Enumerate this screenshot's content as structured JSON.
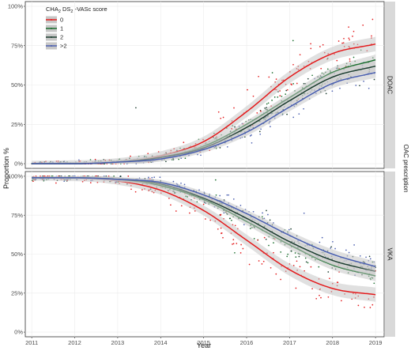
{
  "chart_data": {
    "type": "scatter",
    "facets": [
      "DOAC",
      "VKA"
    ],
    "xlabel": "Year",
    "ylabel": "Proportion %",
    "right_label": "OAC prescription",
    "x_ticks": [
      "2011",
      "2012",
      "2013",
      "2014",
      "2015",
      "2016",
      "2017",
      "2018",
      "2019"
    ],
    "y_ticks": [
      "0%",
      "25%",
      "50%",
      "75%",
      "100%"
    ],
    "xlim": [
      2010.85,
      2019.2
    ],
    "ylim": [
      -3,
      103
    ],
    "legend": {
      "title_parts": [
        "CHA",
        "2",
        " DS",
        "2",
        " -VASc score"
      ],
      "placement": "top-left inside",
      "entries": [
        "0",
        "1",
        "2",
        ">2"
      ]
    },
    "series": [
      {
        "name": "0",
        "color": "#e41a1c",
        "fit": {
          "DOAC": {
            "x": [
              2011,
              2012,
              2013,
              2014,
              2015,
              2016,
              2017,
              2018,
              2019
            ],
            "y": [
              0,
              0,
              1,
              5,
              14,
              33,
              55,
              70,
              76
            ]
          },
          "VKA": {
            "x": [
              2011,
              2012,
              2013,
              2014,
              2015,
              2016,
              2017,
              2018,
              2019
            ],
            "y": [
              99,
              99,
              97,
              91,
              78,
              59,
              40,
              28,
              24
            ]
          }
        }
      },
      {
        "name": "1",
        "color": "#1a6e2e",
        "fit": {
          "DOAC": {
            "x": [
              2011,
              2012,
              2013,
              2014,
              2015,
              2016,
              2017,
              2018,
              2019
            ],
            "y": [
              0,
              0,
              1,
              4,
              11,
              25,
              42,
              58,
              66
            ]
          },
          "VKA": {
            "x": [
              2011,
              2012,
              2013,
              2014,
              2015,
              2016,
              2017,
              2018,
              2019
            ],
            "y": [
              99,
              99,
              98,
              94,
              85,
              71,
              56,
              43,
              36
            ]
          }
        }
      },
      {
        "name": "2",
        "color": "#1b3d2f",
        "fit": {
          "DOAC": {
            "x": [
              2011,
              2012,
              2013,
              2014,
              2015,
              2016,
              2017,
              2018,
              2019
            ],
            "y": [
              0,
              0,
              1,
              4,
              10,
              23,
              40,
              55,
              62
            ]
          },
          "VKA": {
            "x": [
              2011,
              2012,
              2013,
              2014,
              2015,
              2016,
              2017,
              2018,
              2019
            ],
            "y": [
              99,
              99,
              98,
              95,
              86,
              73,
              58,
              46,
              39
            ]
          }
        }
      },
      {
        "name": ">2",
        "color": "#4a5fb0",
        "fit": {
          "DOAC": {
            "x": [
              2011,
              2012,
              2013,
              2014,
              2015,
              2016,
              2017,
              2018,
              2019
            ],
            "y": [
              0,
              0,
              1,
              3,
              9,
              20,
              36,
              51,
              58
            ]
          },
          "VKA": {
            "x": [
              2011,
              2012,
              2013,
              2014,
              2015,
              2016,
              2017,
              2018,
              2019
            ],
            "y": [
              99,
              99,
              98,
              96,
              88,
              76,
              62,
              50,
              42
            ]
          }
        }
      }
    ],
    "ribbon_color": "#c7c7c7",
    "panel_background": "#ffffff",
    "strip_background": "#d9d9d9",
    "grid": true
  }
}
